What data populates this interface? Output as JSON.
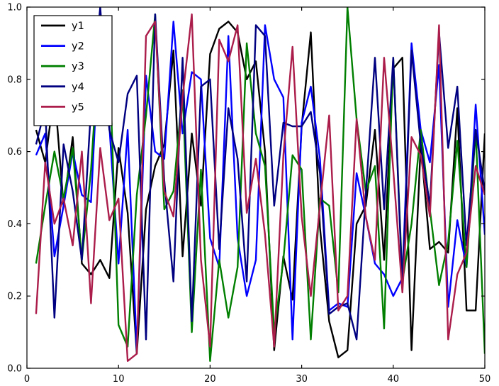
{
  "figure": {
    "background": "#ffffff",
    "frame_color": "#000000"
  },
  "chart_data": {
    "type": "line",
    "title": "",
    "xlabel": "",
    "ylabel": "",
    "xlim": [
      0,
      50
    ],
    "ylim": [
      0.0,
      1.0
    ],
    "xticks": [
      0,
      10,
      20,
      30,
      40,
      50
    ],
    "xtick_labels": [
      "0",
      "10",
      "20",
      "30",
      "40",
      "50"
    ],
    "yticks": [
      0.0,
      0.2,
      0.4,
      0.6,
      0.8,
      1.0
    ],
    "ytick_labels": [
      "0.0",
      "0.2",
      "0.4",
      "0.6",
      "0.8",
      "1.0"
    ],
    "grid": false,
    "legend_position": "upper-left",
    "x": [
      1,
      2,
      3,
      4,
      5,
      6,
      7,
      8,
      9,
      10,
      11,
      12,
      13,
      14,
      15,
      16,
      17,
      18,
      19,
      20,
      21,
      22,
      23,
      24,
      25,
      26,
      27,
      28,
      29,
      30,
      31,
      32,
      33,
      34,
      35,
      36,
      37,
      38,
      39,
      40,
      41,
      42,
      43,
      44,
      45,
      46,
      47,
      48,
      49,
      50
    ],
    "series": [
      {
        "name": "y1",
        "color": "#000000",
        "values": [
          0.66,
          0.57,
          0.77,
          0.45,
          0.64,
          0.29,
          0.26,
          0.3,
          0.25,
          0.61,
          0.43,
          0.04,
          0.44,
          0.56,
          0.62,
          0.88,
          0.31,
          0.65,
          0.45,
          0.87,
          0.94,
          0.96,
          0.93,
          0.8,
          0.85,
          0.6,
          0.05,
          0.31,
          0.19,
          0.67,
          0.93,
          0.39,
          0.13,
          0.03,
          0.05,
          0.4,
          0.45,
          0.66,
          0.3,
          0.83,
          0.86,
          0.05,
          0.62,
          0.33,
          0.35,
          0.32,
          0.72,
          0.16,
          0.16,
          0.65
        ]
      },
      {
        "name": "y2",
        "color": "#0000ff",
        "values": [
          0.59,
          0.65,
          0.31,
          0.45,
          0.6,
          0.48,
          0.46,
          0.97,
          0.67,
          0.29,
          0.66,
          0.05,
          0.81,
          0.6,
          0.58,
          0.96,
          0.65,
          0.82,
          0.8,
          0.36,
          0.28,
          0.92,
          0.36,
          0.2,
          0.3,
          0.95,
          0.8,
          0.75,
          0.08,
          0.68,
          0.78,
          0.58,
          0.16,
          0.18,
          0.17,
          0.54,
          0.42,
          0.29,
          0.26,
          0.2,
          0.25,
          0.9,
          0.66,
          0.57,
          0.84,
          0.17,
          0.41,
          0.28,
          0.73,
          0.37
        ]
      },
      {
        "name": "y3",
        "color": "#007f00",
        "values": [
          0.29,
          0.45,
          0.6,
          0.47,
          0.61,
          0.3,
          0.55,
          0.94,
          0.86,
          0.12,
          0.06,
          0.48,
          0.7,
          0.98,
          0.44,
          0.49,
          0.77,
          0.1,
          0.55,
          0.02,
          0.3,
          0.14,
          0.28,
          0.9,
          0.65,
          0.56,
          0.1,
          0.3,
          0.59,
          0.55,
          0.08,
          0.47,
          0.45,
          0.21,
          1.0,
          0.69,
          0.49,
          0.56,
          0.11,
          0.86,
          0.24,
          0.4,
          0.66,
          0.44,
          0.23,
          0.35,
          0.63,
          0.28,
          0.66,
          0.04
        ]
      },
      {
        "name": "y4",
        "color": "#000080",
        "values": [
          0.62,
          0.72,
          0.14,
          0.62,
          0.49,
          0.3,
          0.72,
          1.0,
          0.66,
          0.57,
          0.76,
          0.81,
          0.08,
          0.98,
          0.52,
          0.24,
          0.86,
          0.13,
          0.78,
          0.8,
          0.33,
          0.72,
          0.58,
          0.24,
          0.95,
          0.92,
          0.45,
          0.68,
          0.67,
          0.67,
          0.71,
          0.54,
          0.15,
          0.17,
          0.18,
          0.08,
          0.48,
          0.86,
          0.44,
          0.86,
          0.22,
          0.88,
          0.62,
          0.45,
          0.93,
          0.61,
          0.78,
          0.34,
          0.66,
          0.49
        ]
      },
      {
        "name": "y5",
        "color": "#ab1d4b",
        "values": [
          0.15,
          0.57,
          0.4,
          0.47,
          0.34,
          0.6,
          0.18,
          0.61,
          0.41,
          0.47,
          0.02,
          0.04,
          0.92,
          0.96,
          0.49,
          0.42,
          0.75,
          0.98,
          0.3,
          0.06,
          0.91,
          0.85,
          0.95,
          0.43,
          0.58,
          0.37,
          0.06,
          0.59,
          0.89,
          0.42,
          0.2,
          0.45,
          0.7,
          0.16,
          0.2,
          0.69,
          0.42,
          0.3,
          0.86,
          0.55,
          0.21,
          0.64,
          0.59,
          0.42,
          0.95,
          0.08,
          0.26,
          0.32,
          0.56,
          0.48
        ]
      }
    ],
    "legend": {
      "entries": [
        "y1",
        "y2",
        "y3",
        "y4",
        "y5"
      ]
    }
  }
}
